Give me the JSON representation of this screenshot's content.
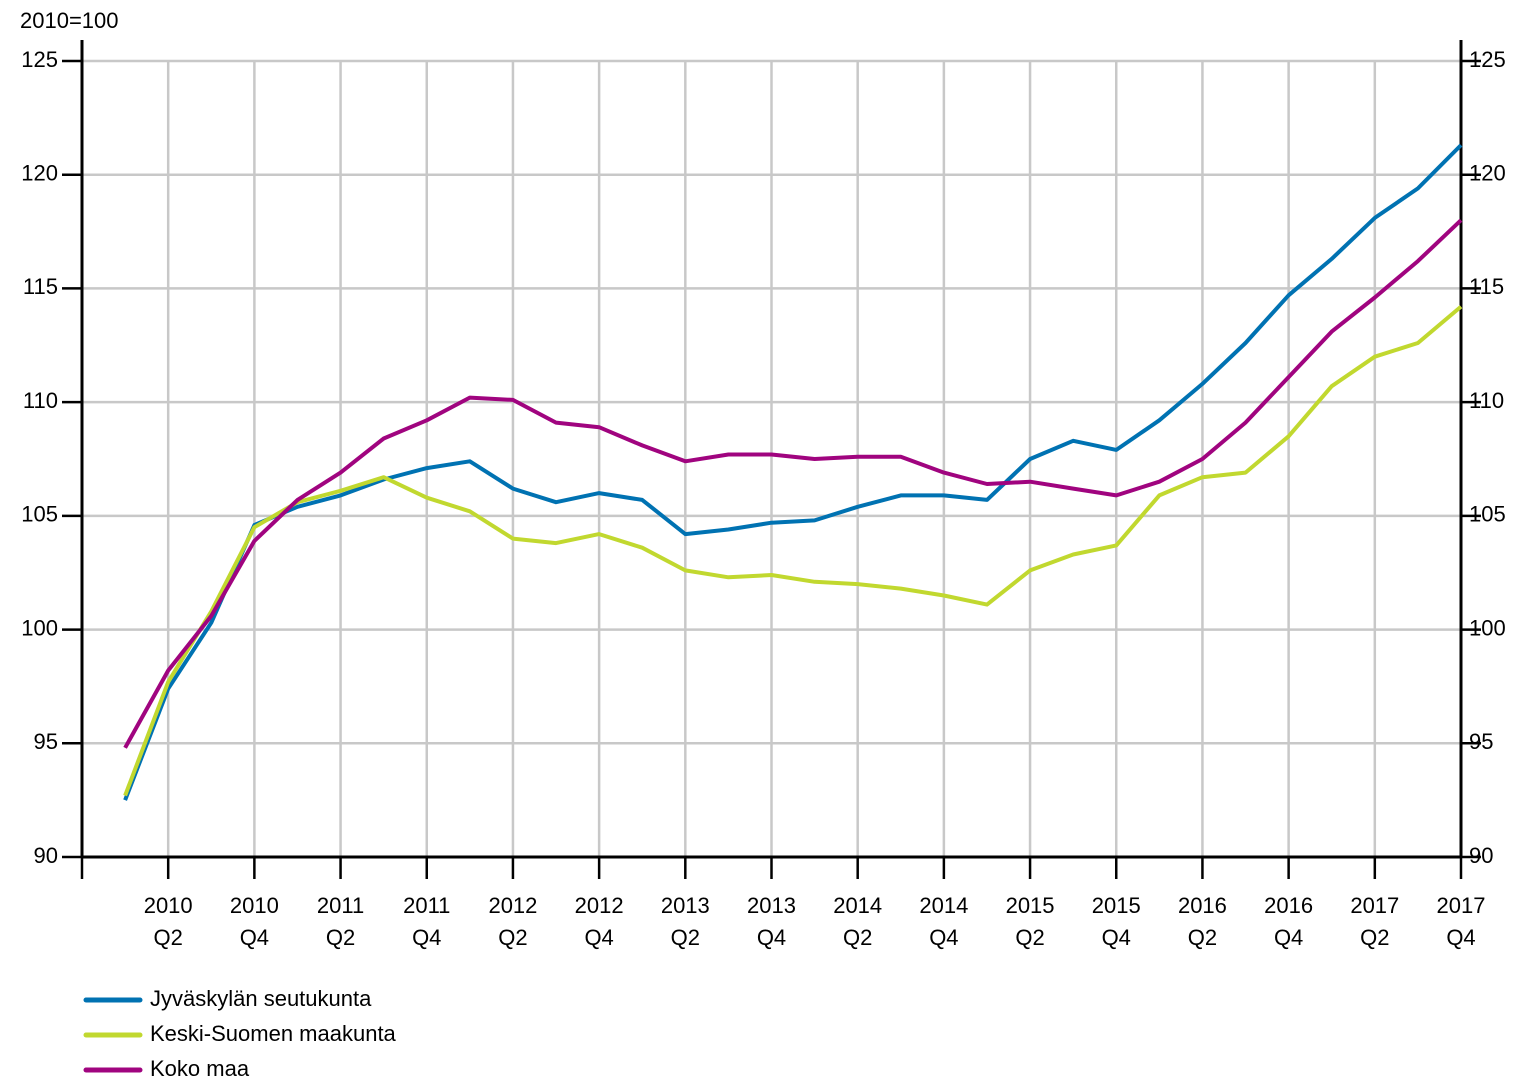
{
  "chart_data": {
    "type": "line",
    "unit_label": "2010=100",
    "categories": [
      null,
      "2010\nQ2",
      null,
      "2010\nQ4",
      null,
      "2011\nQ2",
      null,
      "2011\nQ4",
      null,
      "2012\nQ2",
      null,
      "2012\nQ4",
      null,
      "2013\nQ2",
      null,
      "2013\nQ4",
      null,
      "2014\nQ2",
      null,
      "2014\nQ4",
      null,
      "2015\nQ2",
      null,
      "2015\nQ4",
      null,
      "2016\nQ2",
      null,
      "2016\nQ4",
      null,
      "2017\nQ2",
      null,
      "2017\nQ4"
    ],
    "series": [
      {
        "name": "Jyväskylän seutukunta",
        "color": "#0072b2",
        "values": [
          92.5,
          97.4,
          100.3,
          104.6,
          105.4,
          105.9,
          106.6,
          107.1,
          107.4,
          106.2,
          105.6,
          106.0,
          105.7,
          104.2,
          104.4,
          104.7,
          104.8,
          105.4,
          105.9,
          105.9,
          105.7,
          107.5,
          108.3,
          107.9,
          109.2,
          110.8,
          112.6,
          114.7,
          116.3,
          118.1,
          119.4,
          121.3
        ]
      },
      {
        "name": "Keski-Suomen maakunta",
        "color": "#c1d82f",
        "values": [
          92.7,
          97.7,
          100.8,
          104.5,
          105.6,
          106.1,
          106.7,
          105.8,
          105.2,
          104.0,
          103.8,
          104.2,
          103.6,
          102.6,
          102.3,
          102.4,
          102.1,
          102.0,
          101.8,
          101.5,
          101.1,
          102.6,
          103.3,
          103.7,
          105.9,
          106.7,
          106.9,
          108.5,
          110.7,
          112.0,
          112.6,
          114.2
        ]
      },
      {
        "name": "Koko maa",
        "color": "#a0047f",
        "values": [
          94.8,
          98.2,
          100.6,
          103.9,
          105.7,
          106.9,
          108.4,
          109.2,
          110.2,
          110.1,
          109.1,
          108.9,
          108.1,
          107.4,
          107.7,
          107.7,
          107.5,
          107.6,
          107.6,
          106.9,
          106.4,
          106.5,
          106.2,
          105.9,
          106.5,
          107.5,
          109.1,
          111.1,
          113.1,
          114.6,
          116.2,
          118.0
        ]
      }
    ],
    "ylim": [
      90,
      125
    ],
    "yticks": [
      90,
      95,
      100,
      105,
      110,
      115,
      120,
      125
    ],
    "grid": true
  }
}
